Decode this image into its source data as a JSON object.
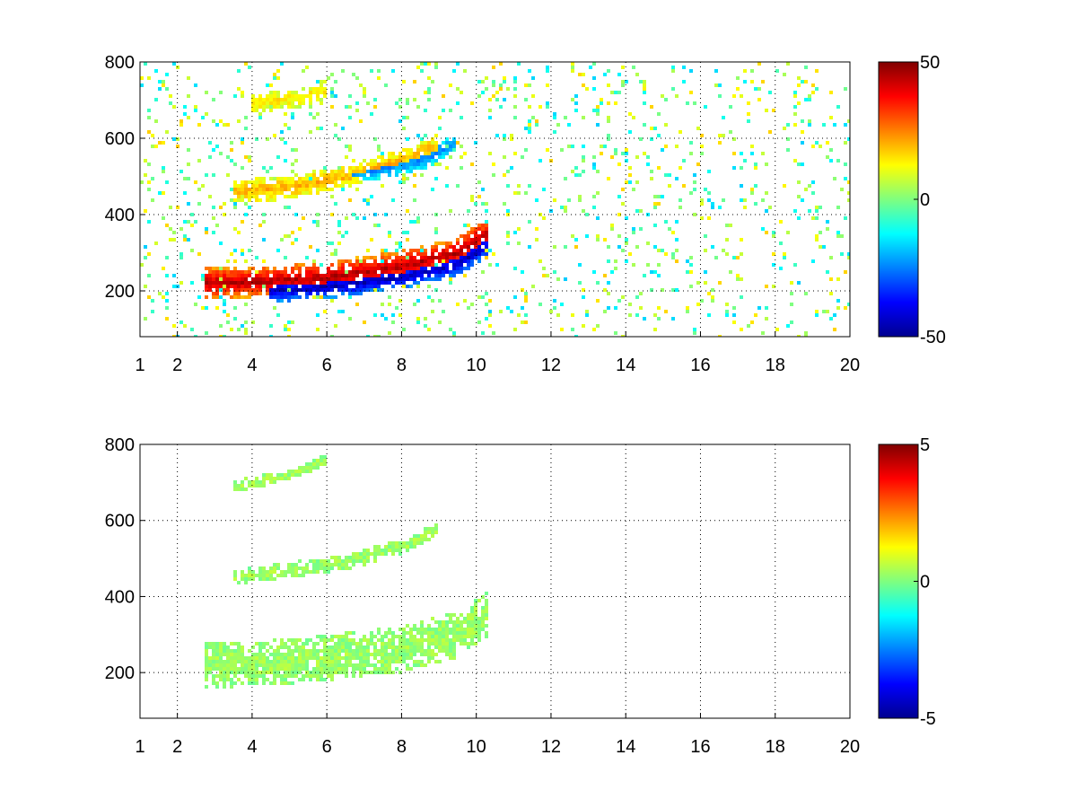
{
  "chart_data": [
    {
      "type": "heatmap",
      "title": "",
      "xlabel": "",
      "ylabel": "",
      "xlim": [
        1,
        20
      ],
      "ylim": [
        80,
        800
      ],
      "x_ticks": [
        "1",
        "2",
        "4",
        "6",
        "8",
        "10",
        "12",
        "14",
        "16",
        "18",
        "20"
      ],
      "x_tick_values": [
        1,
        2,
        4,
        6,
        8,
        10,
        12,
        14,
        16,
        18,
        20
      ],
      "y_ticks": [
        "200",
        "400",
        "600",
        "800"
      ],
      "y_tick_values": [
        200,
        400,
        600,
        800
      ],
      "grid": true,
      "colormap": "jet",
      "colorbar": {
        "min": -50,
        "max": 50,
        "ticks": [
          "50",
          "0",
          "-50"
        ],
        "tick_values": [
          50,
          0,
          -50
        ]
      },
      "features": [
        {
          "x": [
            2.7,
            4.5,
            6.0,
            8.0,
            9.5,
            10.3
          ],
          "y": [
            220,
            225,
            235,
            265,
            300,
            350
          ],
          "value": 45,
          "spread": 40
        },
        {
          "x": [
            4.5,
            6.0,
            8.0,
            9.5,
            10.3
          ],
          "y": [
            200,
            210,
            235,
            270,
            320
          ],
          "value": -45,
          "spread": 30
        },
        {
          "x": [
            3.5,
            5.0,
            6.5,
            8.0,
            9.0
          ],
          "y": [
            460,
            470,
            500,
            540,
            580
          ],
          "value": 20,
          "spread": 30
        },
        {
          "x": [
            5.5,
            7.0,
            8.5,
            9.5
          ],
          "y": [
            480,
            510,
            540,
            590
          ],
          "value": -25,
          "spread": 25
        },
        {
          "x": [
            4.0,
            5.5,
            6.0
          ],
          "y": [
            690,
            710,
            730
          ],
          "value": 15,
          "spread": 25
        }
      ]
    },
    {
      "type": "heatmap",
      "title": "",
      "xlabel": "",
      "ylabel": "",
      "xlim": [
        1,
        20
      ],
      "ylim": [
        80,
        800
      ],
      "x_ticks": [
        "1",
        "2",
        "4",
        "6",
        "8",
        "10",
        "12",
        "14",
        "16",
        "18",
        "20"
      ],
      "x_tick_values": [
        1,
        2,
        4,
        6,
        8,
        10,
        12,
        14,
        16,
        18,
        20
      ],
      "y_ticks": [
        "200",
        "400",
        "600",
        "800"
      ],
      "y_tick_values": [
        200,
        400,
        600,
        800
      ],
      "grid": true,
      "colormap": "jet",
      "colorbar": {
        "min": -5,
        "max": 5,
        "ticks": [
          "5",
          "0",
          "-5"
        ],
        "tick_values": [
          5,
          0,
          -5
        ]
      },
      "features": [
        {
          "x": [
            2.7,
            4.5,
            6.0,
            8.0,
            9.5,
            10.3
          ],
          "y": [
            220,
            225,
            240,
            260,
            300,
            350
          ],
          "value": 0.3,
          "spread": 60
        },
        {
          "x": [
            3.5,
            5.0,
            6.5,
            8.0,
            9.0
          ],
          "y": [
            450,
            470,
            490,
            530,
            580
          ],
          "value": 0.3,
          "spread": 20
        },
        {
          "x": [
            3.5,
            5.0,
            6.0
          ],
          "y": [
            690,
            720,
            760
          ],
          "value": 0.3,
          "spread": 15
        }
      ]
    }
  ]
}
